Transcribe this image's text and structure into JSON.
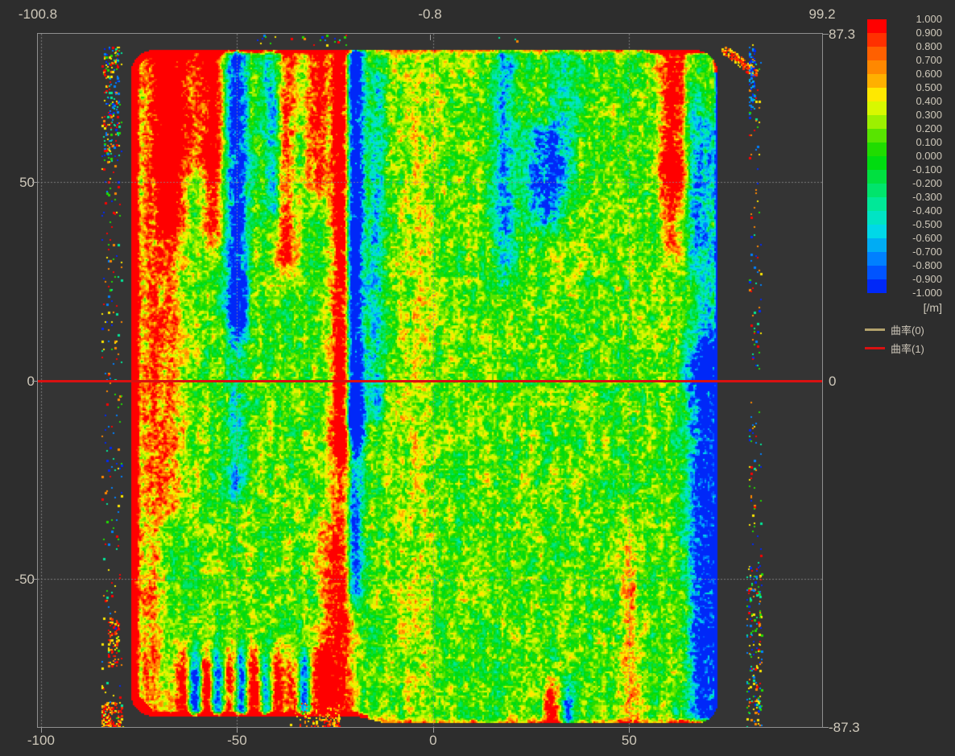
{
  "colors": {
    "background": "#2d2d2d",
    "plot_background": "#343434",
    "frame": "#8f8f8f",
    "grid": "rgba(145,145,145,0.8)",
    "label_text": "#cec8ba",
    "profile_line_red": "#d91111",
    "legend_tan": "#b3a26c"
  },
  "axis_labels": {
    "top": [
      {
        "text": "-100.8",
        "x": -100.8
      },
      {
        "text": "-0.8",
        "x": -0.8,
        "tick": true
      },
      {
        "text": "99.2",
        "x": 99.2
      }
    ],
    "bottom": [
      {
        "text": "-100",
        "x": -100,
        "tick": true
      },
      {
        "text": "-50",
        "x": -50,
        "tick": true
      },
      {
        "text": "0",
        "x": 0,
        "tick": true
      },
      {
        "text": "50",
        "x": 50,
        "tick": true
      }
    ],
    "left": [
      {
        "text": "50",
        "y": 50,
        "tick": true
      },
      {
        "text": "0",
        "y": 0,
        "tick": true
      },
      {
        "text": "-50",
        "y": -50,
        "tick": true
      }
    ],
    "right": [
      {
        "text": "87.3",
        "y": 87.3,
        "tick": true
      },
      {
        "text": "0",
        "y": 0,
        "tick": false
      },
      {
        "text": "-87.3",
        "y": -87.3,
        "tick": true
      }
    ]
  },
  "colorbar": {
    "unit": "[/m]",
    "labels": [
      "1.000",
      "0.900",
      "0.800",
      "0.700",
      "0.600",
      "0.500",
      "0.400",
      "0.300",
      "0.200",
      "0.100",
      "0.000",
      "-0.100",
      "-0.200",
      "-0.300",
      "-0.400",
      "-0.500",
      "-0.600",
      "-0.700",
      "-0.800",
      "-0.900",
      "-1.000"
    ]
  },
  "legend": {
    "items": [
      {
        "label": "曲率(0)",
        "color": "#b3a26c"
      },
      {
        "label": "曲率(1)",
        "color": "#d91111"
      }
    ]
  },
  "crosshair": {
    "y": 0,
    "color": "#d91111"
  },
  "chart_data": {
    "type": "heatmap",
    "title": "",
    "xlabel": "",
    "ylabel": "",
    "unit": "[/m]",
    "x_range": [
      -100.8,
      99.2
    ],
    "y_range": [
      -87.3,
      87.3
    ],
    "value_range": [
      -1.0,
      1.0
    ],
    "value_step": 0.1,
    "grid_x": [
      -100,
      -50,
      0,
      50
    ],
    "grid_y": [
      50,
      0,
      -50
    ],
    "legend_position": "right",
    "palette": [
      "#ff0000",
      "#ff3000",
      "#ff6000",
      "#ff8800",
      "#ffb000",
      "#ffe800",
      "#d8f800",
      "#9cf000",
      "#58e400",
      "#20dc00",
      "#00dc10",
      "#00e040",
      "#00e46c",
      "#00e898",
      "#00e4c4",
      "#00d8e8",
      "#00acf4",
      "#0080ff",
      "#0054ff",
      "#0028f8"
    ],
    "seed": 7,
    "blob": {
      "x": [
        -77.2,
        72.3
      ],
      "y": [
        -86.2,
        83.3
      ],
      "corner_radius": 5.5,
      "base_value": 0.1,
      "noise_weights": [
        0.4,
        0.58,
        0.36
      ]
    },
    "edges": {
      "left": [
        12,
        2.3
      ],
      "top": [
        5,
        1.9,
        0.5
      ],
      "bottom": [
        7,
        1.9,
        0.55
      ],
      "right_blue": [
        4,
        1.5
      ],
      "corner_red": 1.7
    },
    "streaks": [
      {
        "x": -72.5,
        "w": 2.5,
        "y": [
          -86,
          84
        ],
        "a": 0.55
      },
      {
        "x": -67.5,
        "w": 2.2,
        "y": [
          42,
          84
        ],
        "a": 1.35
      },
      {
        "x": -67.5,
        "w": 2.6,
        "y": [
          -30,
          42
        ],
        "a": 0.55
      },
      {
        "x": -63.0,
        "w": 5.0,
        "y": [
          58,
          84
        ],
        "a": 0.75
      },
      {
        "x": -56.3,
        "w": 1.8,
        "y": [
          40,
          84
        ],
        "a": 0.95
      },
      {
        "x": -50.3,
        "w": 2.0,
        "y": [
          18,
          84
        ],
        "a": -1.25
      },
      {
        "x": -50.3,
        "w": 2.0,
        "y": [
          -25,
          18
        ],
        "a": -0.55
      },
      {
        "x": -40.8,
        "w": 1.8,
        "y": [
          45,
          84
        ],
        "a": -0.85
      },
      {
        "x": -38.0,
        "w": 1.8,
        "y": [
          32,
          84
        ],
        "a": 0.9
      },
      {
        "x": -29.5,
        "w": 2.2,
        "y": [
          52,
          84
        ],
        "a": 0.85
      },
      {
        "x": -26.5,
        "w": 2.6,
        "y": [
          -86,
          -40
        ],
        "a": 0.5
      },
      {
        "x": -23.4,
        "w": 1.7,
        "y": [
          -14,
          82
        ],
        "a": 1.6
      },
      {
        "x": -23.4,
        "w": 1.9,
        "y": [
          -86,
          -14
        ],
        "a": 0.75
      },
      {
        "x": -20.3,
        "w": 1.7,
        "y": [
          -10,
          82
        ],
        "a": -1.8
      },
      {
        "x": -20.3,
        "w": 1.6,
        "y": [
          -52,
          -10
        ],
        "a": -1.0
      },
      {
        "x": -14.4,
        "w": 1.5,
        "y": [
          -5,
          72
        ],
        "a": -0.6
      },
      {
        "x": -5.0,
        "w": 3.5,
        "y": [
          -86,
          84
        ],
        "a": 0.22
      },
      {
        "x": 18.0,
        "w": 1.9,
        "y": [
          28,
          80
        ],
        "a": -0.7
      },
      {
        "x": 28.0,
        "w": 3.2,
        "y": [
          44,
          60
        ],
        "a": -1.05
      },
      {
        "x": 33.0,
        "w": 2.2,
        "y": [
          50,
          84
        ],
        "a": -0.5
      },
      {
        "x": 50.0,
        "w": 2.0,
        "y": [
          -86,
          -40
        ],
        "a": 0.45
      },
      {
        "x": 61.0,
        "w": 2.4,
        "y": [
          52,
          84
        ],
        "a": 1.15
      },
      {
        "x": 61.0,
        "w": 2.4,
        "y": [
          36,
          52
        ],
        "a": 0.6
      },
      {
        "x": 66.0,
        "w": 1.6,
        "y": [
          36,
          72
        ],
        "a": -0.55
      },
      {
        "x": 69.5,
        "w": 3.2,
        "y": [
          -82,
          4
        ],
        "a": -1.35
      },
      {
        "x": 69.5,
        "w": 2.4,
        "y": [
          4,
          62
        ],
        "a": -0.6
      },
      {
        "x": 30.0,
        "w": 1.5,
        "y": [
          -86,
          -80
        ],
        "a": 1.1
      },
      {
        "x": 34.0,
        "w": 1.2,
        "y": [
          -86,
          -80
        ],
        "a": -0.9
      },
      {
        "x": -64,
        "w": 1.3,
        "y": [
          -85,
          -73
        ],
        "a": 1.1
      },
      {
        "x": -61,
        "w": 1.3,
        "y": [
          -85,
          -73
        ],
        "a": -1.2
      },
      {
        "x": -58,
        "w": 1.3,
        "y": [
          -85,
          -73
        ],
        "a": 1.2
      },
      {
        "x": -55,
        "w": 1.3,
        "y": [
          -85,
          -73
        ],
        "a": -1.1
      },
      {
        "x": -52,
        "w": 1.3,
        "y": [
          -85,
          -73
        ],
        "a": 1.0
      },
      {
        "x": -49,
        "w": 1.3,
        "y": [
          -85,
          -73
        ],
        "a": -1.2
      },
      {
        "x": -46,
        "w": 1.5,
        "y": [
          -85,
          -73
        ],
        "a": 1.3
      },
      {
        "x": -43,
        "w": 1.3,
        "y": [
          -85,
          -73
        ],
        "a": -0.9
      },
      {
        "x": -40,
        "w": 1.3,
        "y": [
          -85,
          -73
        ],
        "a": 1.1
      },
      {
        "x": -36,
        "w": 1.3,
        "y": [
          -85,
          -73
        ],
        "a": 0.8
      },
      {
        "x": -33,
        "w": 1.3,
        "y": [
          -85,
          -73
        ],
        "a": -1.0
      },
      {
        "x": -30,
        "w": 1.3,
        "y": [
          -85,
          -73
        ],
        "a": 0.9
      },
      {
        "x": -27,
        "w": 1.3,
        "y": [
          -85,
          -73
        ],
        "a": 1.2
      }
    ],
    "outliers": [
      {
        "type": "col",
        "x": [
          -84.5,
          -79.5
        ],
        "y": [
          -88,
          85
        ],
        "density": 0.045,
        "palette": "mix"
      },
      {
        "type": "col",
        "x": [
          -84.0,
          -80.0
        ],
        "y": [
          55,
          84
        ],
        "density": 0.18,
        "palette": "mix"
      },
      {
        "type": "col",
        "x": [
          -83.0,
          -80.5
        ],
        "y": [
          -72,
          -60
        ],
        "density": 0.25,
        "palette": "warm"
      },
      {
        "type": "tri",
        "x": [
          -84.5,
          -79.0
        ],
        "y": [
          -88,
          -81
        ],
        "density": 0.55,
        "palette": "warm"
      },
      {
        "type": "col",
        "x": [
          80.5,
          83.5
        ],
        "y": [
          -88,
          85
        ],
        "density": 0.05,
        "palette": "mix"
      },
      {
        "type": "col",
        "x": [
          80.0,
          84.0
        ],
        "y": [
          -88,
          -45
        ],
        "density": 0.14,
        "palette": "mix"
      },
      {
        "type": "diag",
        "x": [
          73.5,
          82.5
        ],
        "y": [
          77,
          84
        ],
        "density": 0.7,
        "band": 1.5,
        "palette": "warm"
      },
      {
        "type": "col",
        "x": [
          80.5,
          82.0
        ],
        "y": [
          68,
          84
        ],
        "density": 0.35,
        "palette": "cool"
      },
      {
        "type": "row",
        "x": [
          -45,
          -20
        ],
        "y": [
          84.5,
          87
        ],
        "density": 0.05,
        "palette": "mix"
      },
      {
        "type": "tri2",
        "x": [
          -39,
          -24
        ],
        "y": [
          -88,
          -80
        ],
        "density": 0.6,
        "palette": "warm"
      },
      {
        "type": "row",
        "x": [
          15,
          25
        ],
        "y": [
          84.5,
          86.5
        ],
        "density": 0.04,
        "palette": "mix"
      }
    ]
  }
}
